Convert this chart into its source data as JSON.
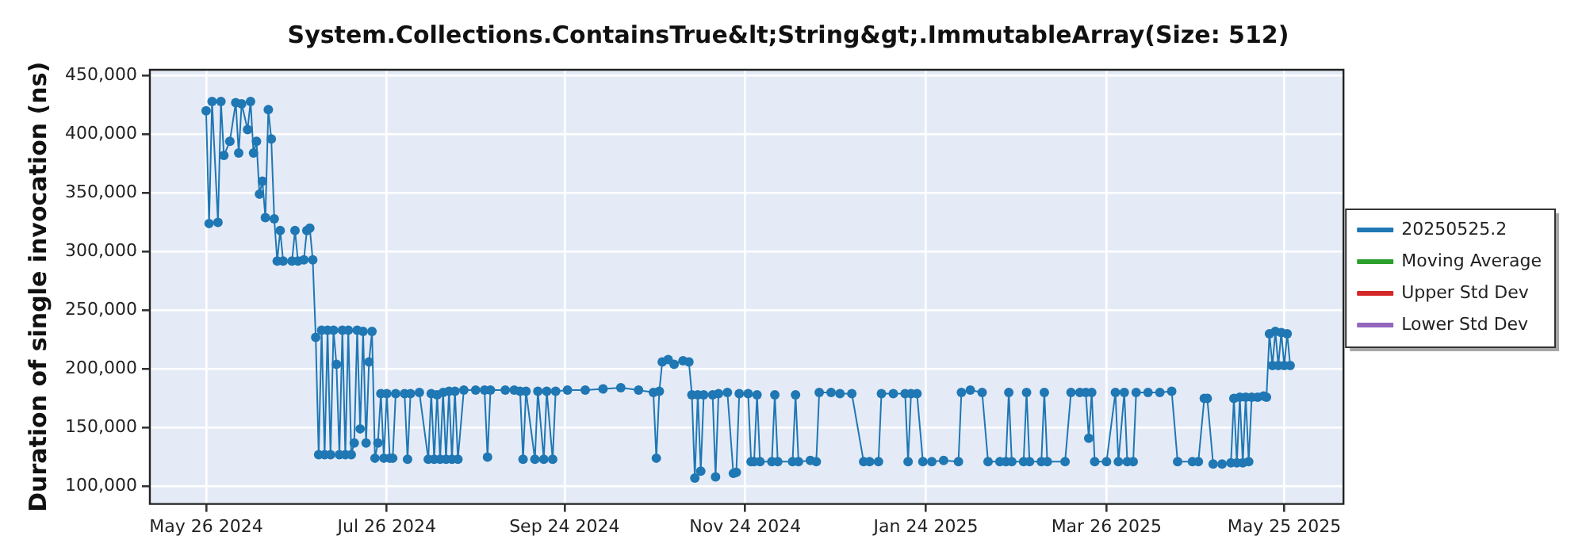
{
  "chart_data": {
    "type": "line",
    "title": "System.Collections.ContainsTrue&lt;String&gt;.ImmutableArray(Size: 512)",
    "ylabel": "Duration of single invocation (ns)",
    "x": [
      "2024-05-26",
      "2024-05-27",
      "2024-05-28",
      "2024-05-30",
      "2024-05-31",
      "2024-06-01",
      "2024-06-03",
      "2024-06-05",
      "2024-06-06",
      "2024-06-07",
      "2024-06-09",
      "2024-06-10",
      "2024-06-11",
      "2024-06-12",
      "2024-06-13",
      "2024-06-14",
      "2024-06-15",
      "2024-06-16",
      "2024-06-17",
      "2024-06-18",
      "2024-06-19",
      "2024-06-20",
      "2024-06-21",
      "2024-06-24",
      "2024-06-25",
      "2024-06-26",
      "2024-06-28",
      "2024-06-29",
      "2024-06-30",
      "2024-07-01",
      "2024-07-02",
      "2024-07-03",
      "2024-07-04",
      "2024-07-05",
      "2024-07-06",
      "2024-07-07",
      "2024-07-08",
      "2024-07-09",
      "2024-07-10",
      "2024-07-11",
      "2024-07-12",
      "2024-07-13",
      "2024-07-14",
      "2024-07-15",
      "2024-07-16",
      "2024-07-17",
      "2024-07-18",
      "2024-07-19",
      "2024-07-20",
      "2024-07-21",
      "2024-07-22",
      "2024-07-23",
      "2024-07-24",
      "2024-07-25",
      "2024-07-26",
      "2024-07-27",
      "2024-07-28",
      "2024-07-29",
      "2024-08-01",
      "2024-08-02",
      "2024-08-03",
      "2024-08-06",
      "2024-08-09",
      "2024-08-10",
      "2024-08-11",
      "2024-08-12",
      "2024-08-13",
      "2024-08-14",
      "2024-08-15",
      "2024-08-16",
      "2024-08-17",
      "2024-08-18",
      "2024-08-19",
      "2024-08-21",
      "2024-08-25",
      "2024-08-28",
      "2024-08-29",
      "2024-08-30",
      "2024-09-04",
      "2024-09-07",
      "2024-09-09",
      "2024-09-10",
      "2024-09-11",
      "2024-09-14",
      "2024-09-15",
      "2024-09-17",
      "2024-09-18",
      "2024-09-20",
      "2024-09-21",
      "2024-09-25",
      "2024-10-01",
      "2024-10-07",
      "2024-10-13",
      "2024-10-19",
      "2024-10-24",
      "2024-10-25",
      "2024-10-26",
      "2024-10-27",
      "2024-10-29",
      "2024-10-31",
      "2024-11-03",
      "2024-11-05",
      "2024-11-06",
      "2024-11-07",
      "2024-11-08",
      "2024-11-09",
      "2024-11-10",
      "2024-11-13",
      "2024-11-14",
      "2024-11-15",
      "2024-11-18",
      "2024-11-20",
      "2024-11-21",
      "2024-11-22",
      "2024-11-25",
      "2024-11-26",
      "2024-11-27",
      "2024-11-28",
      "2024-11-29",
      "2024-12-03",
      "2024-12-04",
      "2024-12-05",
      "2024-12-10",
      "2024-12-11",
      "2024-12-12",
      "2024-12-16",
      "2024-12-18",
      "2024-12-19",
      "2024-12-23",
      "2024-12-26",
      "2024-12-30",
      "2025-01-03",
      "2025-01-05",
      "2025-01-08",
      "2025-01-09",
      "2025-01-13",
      "2025-01-17",
      "2025-01-18",
      "2025-01-19",
      "2025-01-21",
      "2025-01-23",
      "2025-01-26",
      "2025-01-30",
      "2025-02-04",
      "2025-02-05",
      "2025-02-08",
      "2025-02-12",
      "2025-02-14",
      "2025-02-18",
      "2025-02-20",
      "2025-02-21",
      "2025-02-22",
      "2025-02-26",
      "2025-02-27",
      "2025-02-28",
      "2025-03-04",
      "2025-03-05",
      "2025-03-06",
      "2025-03-12",
      "2025-03-14",
      "2025-03-17",
      "2025-03-19",
      "2025-03-20",
      "2025-03-21",
      "2025-03-22",
      "2025-03-26",
      "2025-03-29",
      "2025-03-30",
      "2025-04-01",
      "2025-04-02",
      "2025-04-04",
      "2025-04-05",
      "2025-04-09",
      "2025-04-13",
      "2025-04-17",
      "2025-04-19",
      "2025-04-24",
      "2025-04-26",
      "2025-04-28",
      "2025-04-29",
      "2025-05-01",
      "2025-05-04",
      "2025-05-07",
      "2025-05-08",
      "2025-05-09",
      "2025-05-10",
      "2025-05-11",
      "2025-05-12",
      "2025-05-13",
      "2025-05-14",
      "2025-05-16",
      "2025-05-18",
      "2025-05-19",
      "2025-05-20",
      "2025-05-21",
      "2025-05-22",
      "2025-05-23",
      "2025-05-24",
      "2025-05-25",
      "2025-05-26",
      "2025-05-27"
    ],
    "series": [
      {
        "name": "20250525.2",
        "color": "#1f77b4",
        "values": [
          420000,
          324000,
          428000,
          325000,
          428000,
          382000,
          394000,
          427000,
          384000,
          426000,
          404000,
          428000,
          384000,
          394000,
          349000,
          360000,
          329000,
          421000,
          396000,
          328000,
          292000,
          318000,
          292000,
          292000,
          318000,
          292000,
          293000,
          318000,
          320000,
          293000,
          227000,
          127000,
          233000,
          127000,
          233000,
          127000,
          233000,
          204000,
          127000,
          233000,
          127000,
          233000,
          127000,
          137000,
          233000,
          149000,
          232000,
          137000,
          206000,
          232000,
          124000,
          137000,
          179000,
          124000,
          179000,
          124000,
          124000,
          179000,
          179000,
          123000,
          179000,
          180000,
          123000,
          179000,
          123000,
          178000,
          123000,
          180000,
          123000,
          181000,
          123000,
          181000,
          123000,
          182000,
          182000,
          182000,
          125000,
          182000,
          182000,
          182000,
          181000,
          123000,
          181000,
          123000,
          181000,
          123000,
          181000,
          123000,
          181000,
          182000,
          182000,
          183000,
          184000,
          182000,
          180000,
          124000,
          181000,
          206000,
          208000,
          204000,
          207000,
          206000,
          178000,
          107000,
          178000,
          113000,
          178000,
          178000,
          108000,
          179000,
          180000,
          111000,
          112000,
          179000,
          179000,
          121000,
          121000,
          178000,
          121000,
          121000,
          178000,
          121000,
          121000,
          178000,
          121000,
          122000,
          121000,
          180000,
          180000,
          179000,
          179000,
          121000,
          121000,
          121000,
          179000,
          179000,
          179000,
          121000,
          179000,
          179000,
          121000,
          121000,
          122000,
          121000,
          180000,
          182000,
          180000,
          121000,
          121000,
          121000,
          180000,
          121000,
          121000,
          180000,
          121000,
          121000,
          180000,
          121000,
          121000,
          180000,
          180000,
          180000,
          141000,
          180000,
          121000,
          121000,
          180000,
          121000,
          180000,
          121000,
          121000,
          180000,
          180000,
          180000,
          181000,
          121000,
          121000,
          121000,
          175000,
          175000,
          119000,
          119000,
          120000,
          175000,
          120000,
          176000,
          120000,
          176000,
          121000,
          176000,
          176000,
          177000,
          176000,
          230000,
          203000,
          232000,
          203000,
          231000,
          203000,
          230000,
          203000
        ]
      },
      {
        "name": "Moving Average",
        "color": "#2ca02c",
        "values": [
          null,
          null,
          null,
          null,
          null,
          null,
          null,
          null,
          null,
          null,
          null,
          null,
          null,
          null,
          null,
          null,
          null,
          null,
          null,
          null,
          null,
          null,
          null,
          null,
          null,
          null,
          null,
          null,
          null,
          null,
          null,
          null,
          null,
          null,
          null,
          null,
          null,
          null,
          null,
          null,
          null,
          null,
          null,
          null,
          null,
          null,
          null,
          null,
          null,
          null,
          null,
          null,
          null,
          null,
          null,
          null,
          null,
          null,
          null,
          null,
          null,
          null,
          null,
          null,
          null,
          null,
          null,
          null,
          null,
          null,
          null,
          null,
          null,
          null,
          null,
          null,
          null,
          null,
          null,
          null,
          null,
          null,
          null,
          null,
          null,
          null,
          null,
          null,
          null,
          null,
          null,
          null,
          null,
          null,
          null,
          null,
          null,
          null,
          null,
          null,
          null,
          null,
          null,
          null,
          null,
          null,
          null,
          null,
          null,
          null,
          null,
          null,
          null,
          null,
          null,
          null,
          null,
          null,
          null,
          null,
          null,
          null,
          null,
          null,
          null,
          null,
          null,
          null,
          null,
          null,
          null,
          null,
          null,
          null,
          null,
          null,
          null,
          null,
          null,
          null,
          null,
          null,
          null,
          null,
          null,
          null,
          null,
          null,
          null,
          null,
          null,
          null,
          null,
          null,
          null,
          null,
          null,
          null,
          null,
          null,
          null,
          null,
          null,
          null,
          null,
          null,
          null,
          null,
          null,
          null,
          null,
          null,
          null,
          null,
          null,
          null,
          null,
          null,
          null,
          null,
          null,
          null,
          null,
          null,
          null,
          null,
          null,
          null,
          null,
          null,
          null,
          null,
          null,
          null,
          null,
          null,
          null,
          null,
          null,
          null,
          null
        ]
      },
      {
        "name": "Upper Std Dev",
        "color": "#d62728",
        "values": [
          null,
          null,
          null,
          null,
          null,
          null,
          null,
          null,
          null,
          null,
          null,
          null,
          null,
          null,
          null,
          null,
          null,
          null,
          null,
          null,
          null,
          null,
          null,
          null,
          null,
          null,
          null,
          null,
          null,
          null,
          null,
          null,
          null,
          null,
          null,
          null,
          null,
          null,
          null,
          null,
          null,
          null,
          null,
          null,
          null,
          null,
          null,
          null,
          null,
          null,
          null,
          null,
          null,
          null,
          null,
          null,
          null,
          null,
          null,
          null,
          null,
          null,
          null,
          null,
          null,
          null,
          null,
          null,
          null,
          null,
          null,
          null,
          null,
          null,
          null,
          null,
          null,
          null,
          null,
          null,
          null,
          null,
          null,
          null,
          null,
          null,
          null,
          null,
          null,
          null,
          null,
          null,
          null,
          null,
          null,
          null,
          null,
          null,
          null,
          null,
          null,
          null,
          null,
          null,
          null,
          null,
          null,
          null,
          null,
          null,
          null,
          null,
          null,
          null,
          null,
          null,
          null,
          null,
          null,
          null,
          null,
          null,
          null,
          null,
          null,
          null,
          null,
          null,
          null,
          null,
          null,
          null,
          null,
          null,
          null,
          null,
          null,
          null,
          null,
          null,
          null,
          null,
          null,
          null,
          null,
          null,
          null,
          null,
          null,
          null,
          null,
          null,
          null,
          null,
          null,
          null,
          null,
          null,
          null,
          null,
          null,
          null,
          null,
          null,
          null,
          null,
          null,
          null,
          null,
          null,
          null,
          null,
          null,
          null,
          null,
          null,
          null,
          null,
          null,
          null,
          null,
          null,
          null,
          null,
          null,
          null,
          null,
          null,
          null,
          null,
          null,
          null,
          null,
          null,
          null,
          null,
          null,
          null,
          null,
          null,
          null
        ]
      },
      {
        "name": "Lower Std Dev",
        "color": "#9467bd",
        "values": [
          null,
          null,
          null,
          null,
          null,
          null,
          null,
          null,
          null,
          null,
          null,
          null,
          null,
          null,
          null,
          null,
          null,
          null,
          null,
          null,
          null,
          null,
          null,
          null,
          null,
          null,
          null,
          null,
          null,
          null,
          null,
          null,
          null,
          null,
          null,
          null,
          null,
          null,
          null,
          null,
          null,
          null,
          null,
          null,
          null,
          null,
          null,
          null,
          null,
          null,
          null,
          null,
          null,
          null,
          null,
          null,
          null,
          null,
          null,
          null,
          null,
          null,
          null,
          null,
          null,
          null,
          null,
          null,
          null,
          null,
          null,
          null,
          null,
          null,
          null,
          null,
          null,
          null,
          null,
          null,
          null,
          null,
          null,
          null,
          null,
          null,
          null,
          null,
          null,
          null,
          null,
          null,
          null,
          null,
          null,
          null,
          null,
          null,
          null,
          null,
          null,
          null,
          null,
          null,
          null,
          null,
          null,
          null,
          null,
          null,
          null,
          null,
          null,
          null,
          null,
          null,
          null,
          null,
          null,
          null,
          null,
          null,
          null,
          null,
          null,
          null,
          null,
          null,
          null,
          null,
          null,
          null,
          null,
          null,
          null,
          null,
          null,
          null,
          null,
          null,
          null,
          null,
          null,
          null,
          null,
          null,
          null,
          null,
          null,
          null,
          null,
          null,
          null,
          null,
          null,
          null,
          null,
          null,
          null,
          null,
          null,
          null,
          null,
          null,
          null,
          null,
          null,
          null,
          null,
          null,
          null,
          null,
          null,
          null,
          null,
          null,
          null,
          null,
          null,
          null,
          null,
          null,
          null,
          null,
          null,
          null,
          null,
          null,
          null,
          null,
          null,
          null,
          null,
          null,
          null,
          null,
          null,
          null,
          null,
          null,
          null
        ]
      }
    ],
    "xlim": [
      "2024-05-07",
      "2025-06-14"
    ],
    "xticks": [
      {
        "value": "2024-05-26",
        "label": "May 26 2024"
      },
      {
        "value": "2024-07-26",
        "label": "Jul 26 2024"
      },
      {
        "value": "2024-09-24",
        "label": "Sep 24 2024"
      },
      {
        "value": "2024-11-24",
        "label": "Nov 24 2024"
      },
      {
        "value": "2025-01-24",
        "label": "Jan 24 2025"
      },
      {
        "value": "2025-03-26",
        "label": "Mar 26 2025"
      },
      {
        "value": "2025-05-25",
        "label": "May 25 2025"
      }
    ],
    "ylim": [
      85000,
      455000
    ],
    "yticks": [
      {
        "value": 100000,
        "label": "100,000"
      },
      {
        "value": 150000,
        "label": "150,000"
      },
      {
        "value": 200000,
        "label": "200,000"
      },
      {
        "value": 250000,
        "label": "250,000"
      },
      {
        "value": 300000,
        "label": "300,000"
      },
      {
        "value": 350000,
        "label": "350,000"
      },
      {
        "value": 400000,
        "label": "400,000"
      },
      {
        "value": 450000,
        "label": "450,000"
      }
    ],
    "grid": true,
    "legend": "right",
    "marker": "circle",
    "line_style": "solid"
  }
}
